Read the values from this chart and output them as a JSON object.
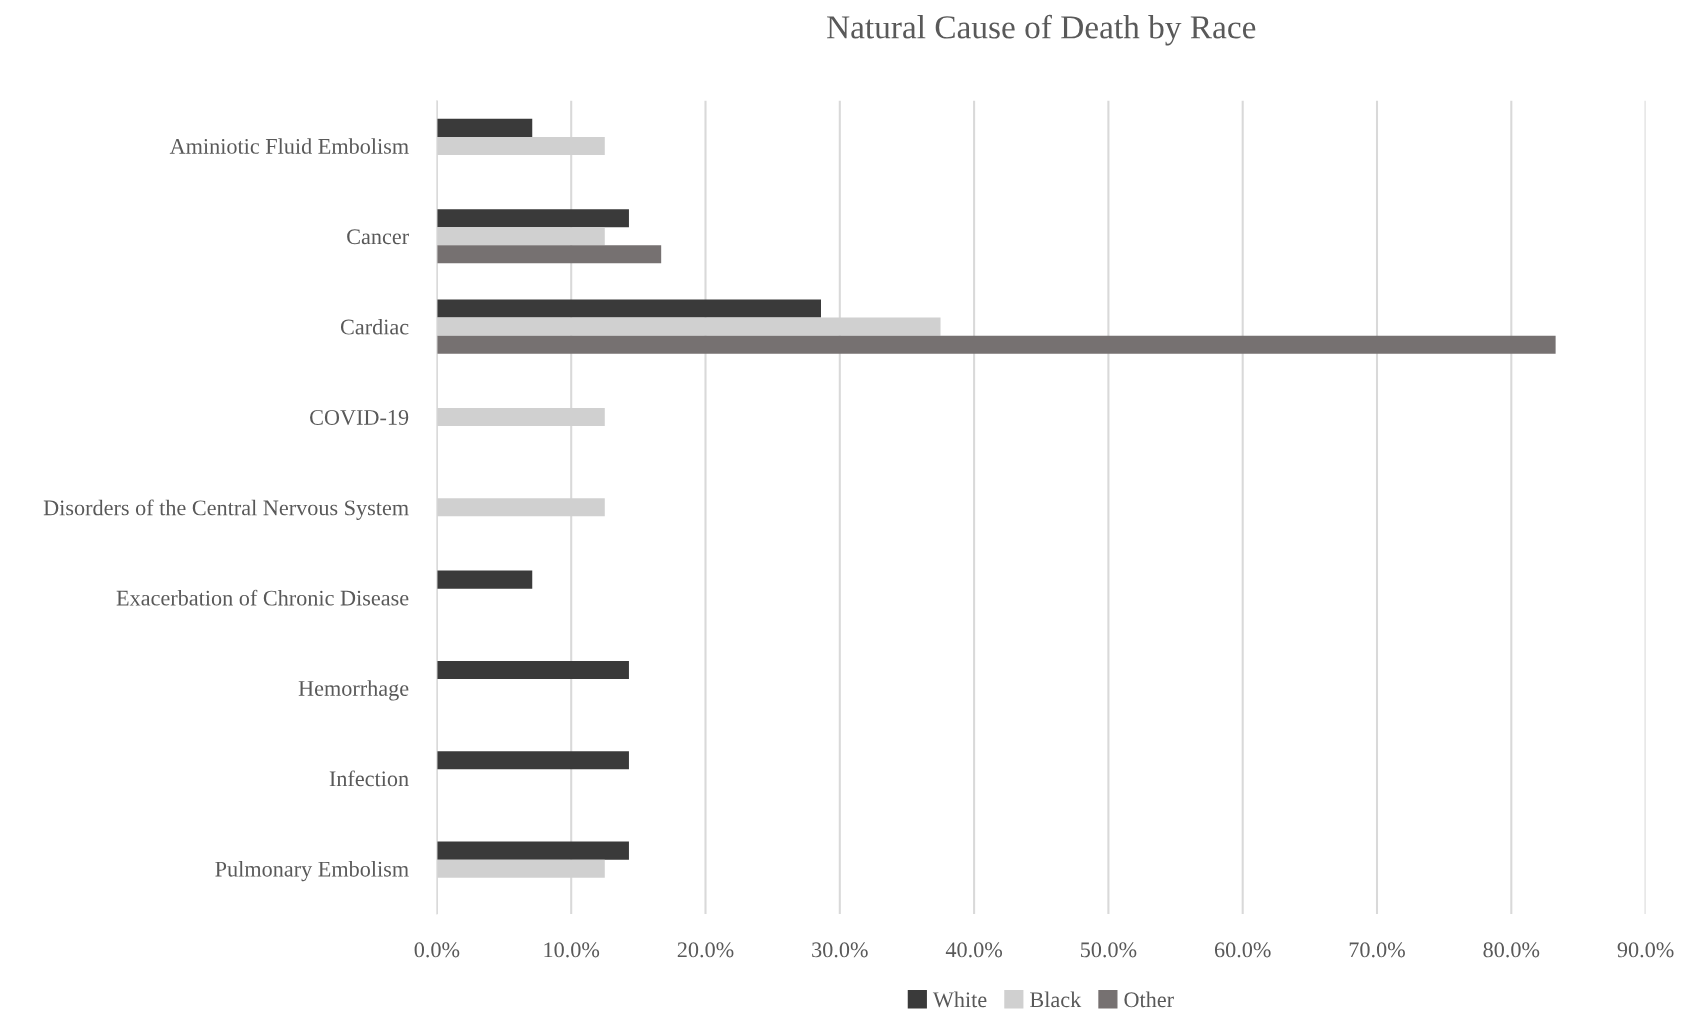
{
  "chart_data": {
    "type": "bar",
    "orientation": "horizontal",
    "title": "Natural Cause of Death by Race",
    "categories": [
      "Aminiotic Fluid Embolism",
      "Cancer",
      "Cardiac",
      "COVID-19",
      "Disorders of the Central Nervous System",
      "Exacerbation of Chronic Disease",
      "Hemorrhage",
      "Infection",
      "Pulmonary Embolism"
    ],
    "series": [
      {
        "name": "White",
        "color": "#3a3a3a",
        "values": [
          7.1,
          14.3,
          28.6,
          null,
          null,
          7.1,
          14.3,
          14.3,
          14.3
        ]
      },
      {
        "name": "Black",
        "color": "#d0d0d0",
        "values": [
          12.5,
          12.5,
          37.5,
          12.5,
          12.5,
          null,
          null,
          null,
          12.5
        ]
      },
      {
        "name": "Other",
        "color": "#767171",
        "values": [
          null,
          16.7,
          83.3,
          null,
          null,
          null,
          null,
          null,
          null
        ]
      }
    ],
    "xlim": [
      0,
      90
    ],
    "xticks": [
      {
        "value": 0,
        "label": "0.0%"
      },
      {
        "value": 10,
        "label": "10.0%"
      },
      {
        "value": 20,
        "label": "20.0%"
      },
      {
        "value": 30,
        "label": "30.0%"
      },
      {
        "value": 40,
        "label": "40.0%"
      },
      {
        "value": 50,
        "label": "50.0%"
      },
      {
        "value": 60,
        "label": "60.0%"
      },
      {
        "value": 70,
        "label": "70.0%"
      },
      {
        "value": 80,
        "label": "80.0%"
      },
      {
        "value": 90,
        "label": "90.0%"
      }
    ],
    "grid": "x",
    "legend": "bottom"
  }
}
